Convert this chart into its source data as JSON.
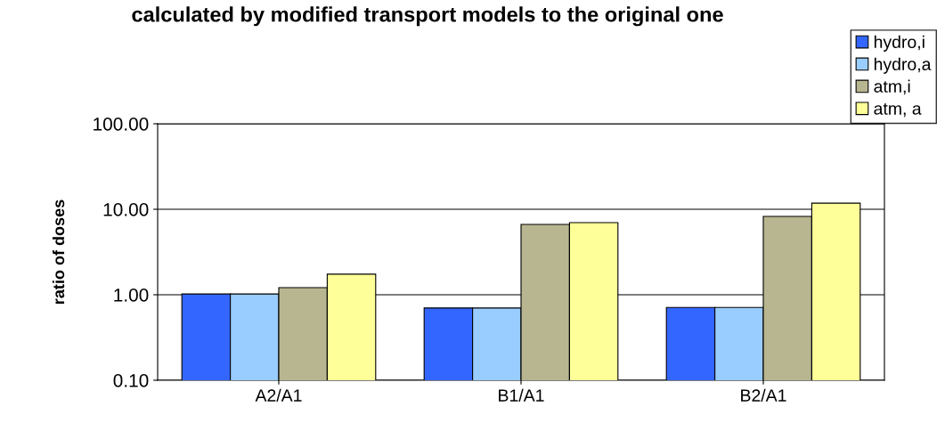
{
  "chart_data": {
    "type": "bar",
    "title": "calculated by modified transport models to the original one",
    "ylabel": "ratio of doses",
    "categories": [
      "A2/A1",
      "B1/A1",
      "B2/A1"
    ],
    "series": [
      {
        "name": "hydro,i",
        "color": "#3366ff",
        "values": [
          1.02,
          0.7,
          0.71
        ]
      },
      {
        "name": "hydro,a",
        "color": "#99ccff",
        "values": [
          1.02,
          0.7,
          0.71
        ]
      },
      {
        "name": "atm,i",
        "color": "#b8b690",
        "values": [
          1.21,
          6.65,
          8.25
        ]
      },
      {
        "name": "atm, a",
        "color": "#ffff99",
        "values": [
          1.74,
          6.98,
          11.8
        ]
      }
    ],
    "log": true,
    "ylim": [
      0.1,
      100
    ],
    "yticks": [
      {
        "value": 0.1,
        "label": "0.10"
      },
      {
        "value": 1,
        "label": "1.00"
      },
      {
        "value": 10,
        "label": "10.00"
      },
      {
        "value": 100,
        "label": "100.00"
      }
    ],
    "grid": "y",
    "legend": "top right"
  }
}
